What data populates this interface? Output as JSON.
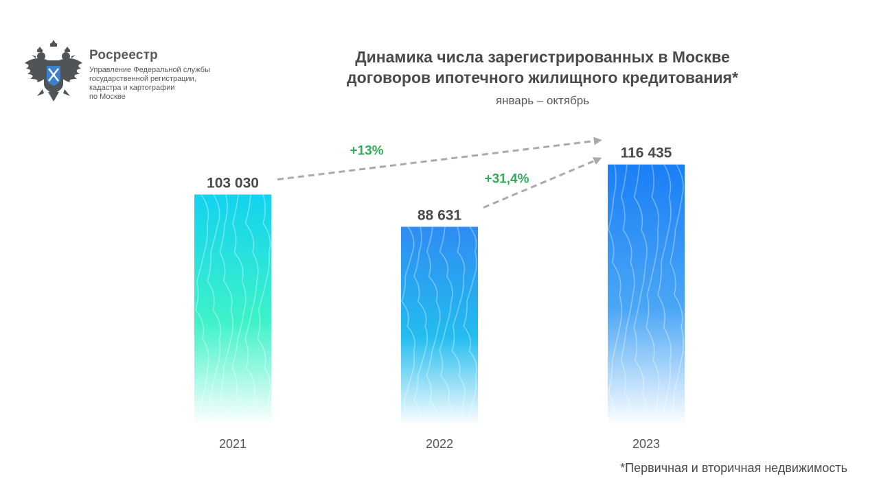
{
  "header": {
    "org_name": "Росреестр",
    "org_subtitle": "Управление Федеральной службы\nгосударственной регистрации,\nкадастра и картографии\nпо Москве",
    "logo_icon": "double-headed-eagle-emblem-icon"
  },
  "chart_data": {
    "type": "bar",
    "title": "Динамика числа зарегистрированных в Москве\nдоговоров ипотечного жилищного кредитования*",
    "subtitle": "январь – октябрь",
    "categories": [
      "2021",
      "2022",
      "2023"
    ],
    "values": [
      103030,
      88631,
      116435
    ],
    "value_labels": [
      "103 030",
      "88 631",
      "116 435"
    ],
    "ylim": [
      0,
      124000
    ],
    "grid": false,
    "legend": "none",
    "annotations": [
      {
        "from": "2021",
        "to": "2023",
        "text": "+13%"
      },
      {
        "from": "2022",
        "to": "2023",
        "text": "+31,4%"
      }
    ],
    "colors": {
      "bar_2021_top": "#13d2f0",
      "bar_2021_mid": "#3df2c8",
      "bar_2022_top": "#2f8cf2",
      "bar_2022_mid": "#22bcef",
      "bar_2023_top": "#1a7ff5",
      "bar_2023_mid": "#4aa6f5",
      "growth_text": "#2fae5a",
      "arrow": "#aaaaaa",
      "value_text": "#4a4a4a",
      "axis_text": "#555555"
    }
  },
  "footnote": "*Первичная и вторичная недвижимость"
}
